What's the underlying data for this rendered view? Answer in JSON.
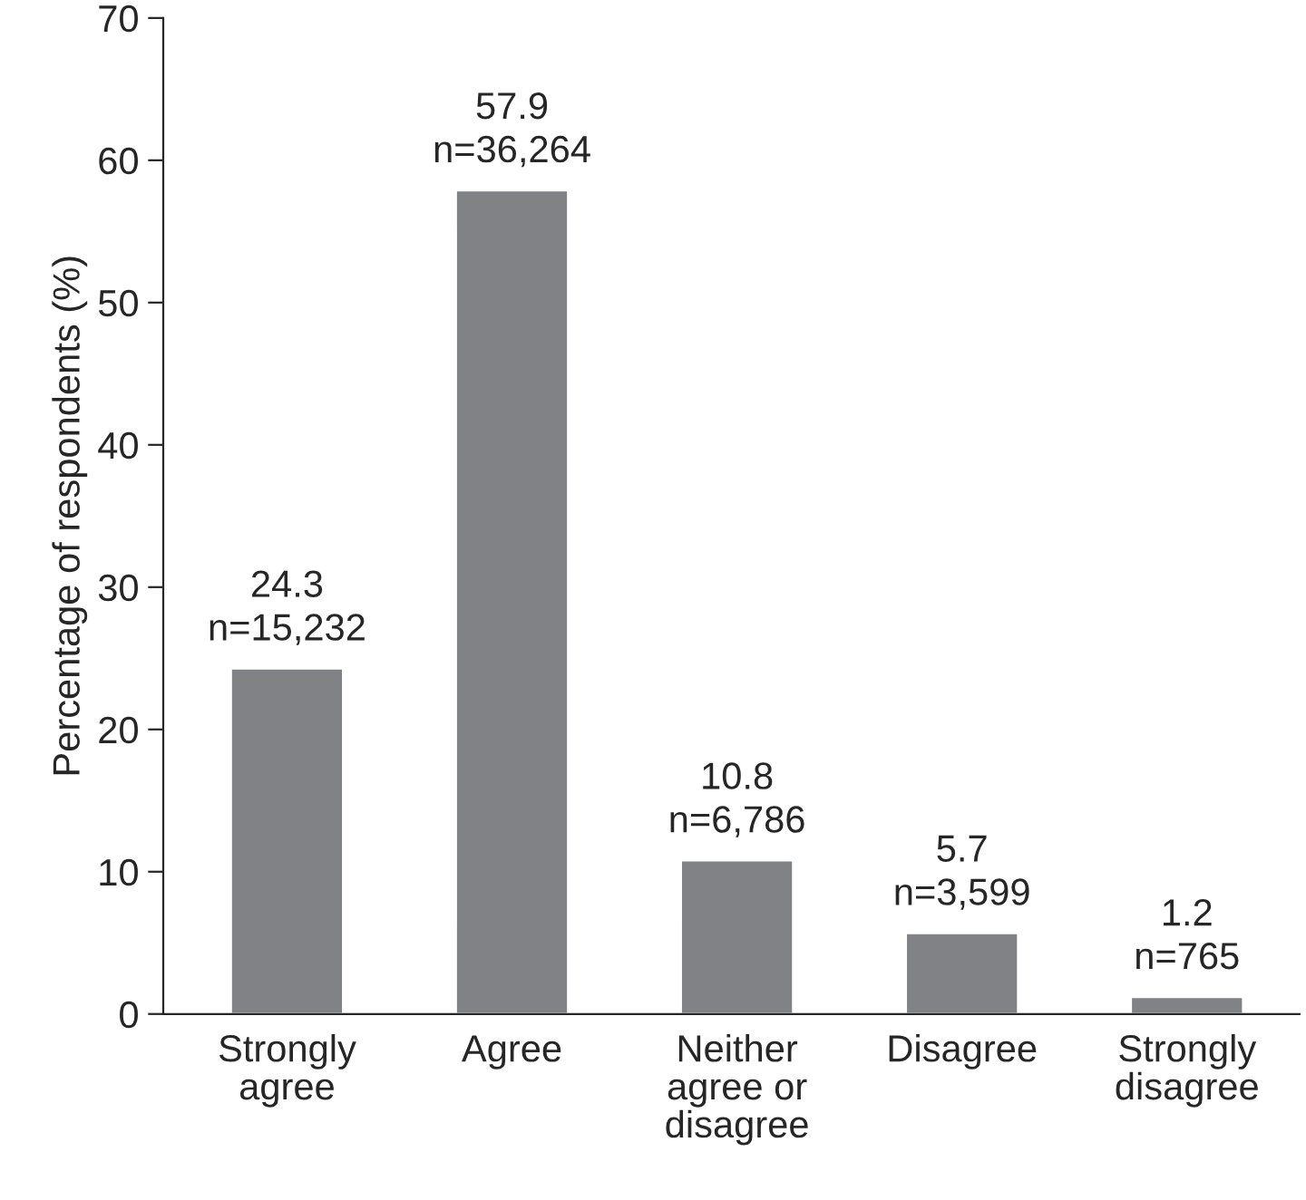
{
  "chart_data": {
    "type": "bar",
    "ylabel": "Percentage of respondents (%)",
    "categories": [
      "Strongly\nagree",
      "Agree",
      "Neither\nagree or\ndisagree",
      "Disagree",
      "Strongly\ndisagree"
    ],
    "values": [
      24.3,
      57.9,
      10.8,
      5.7,
      1.2
    ],
    "value_labels": [
      "24.3\nn=15,232",
      "57.9\nn=36,264",
      "10.8\nn=6,786",
      "5.7\nn=3,599",
      "1.2\nn=765"
    ],
    "color": "#808285",
    "ylim": [
      0,
      70
    ],
    "yticks": [
      0,
      10,
      20,
      30,
      40,
      50,
      60,
      70
    ],
    "grid": false,
    "legend": false
  }
}
